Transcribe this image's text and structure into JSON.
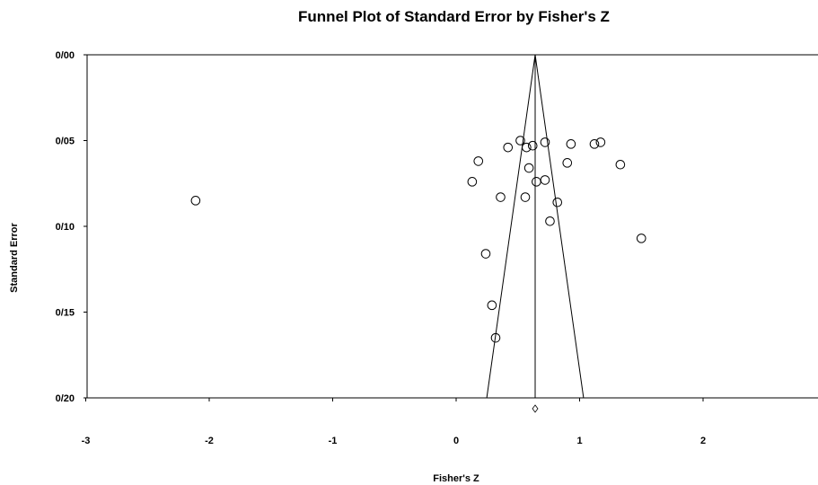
{
  "chart_data": {
    "type": "scatter",
    "title": "Funnel Plot of Standard Error by Fisher's Z",
    "xlabel": "Fisher's Z",
    "ylabel": "Standard Error",
    "xlim": [
      -3,
      3
    ],
    "ylim": [
      0,
      0.2
    ],
    "y_inverted": true,
    "x_ticks": [
      "-3",
      "-2",
      "-1",
      "0",
      "1",
      "2"
    ],
    "x_tick_values": [
      -3,
      -2,
      -1,
      0,
      1,
      2
    ],
    "y_ticks": [
      "0/00",
      "0/05",
      "0/10",
      "0/15",
      "0/20"
    ],
    "y_tick_values": [
      0,
      0.05,
      0.1,
      0.15,
      0.2
    ],
    "summary_effect": 0.64,
    "funnel_se_max": 0.2,
    "points": [
      {
        "x": -2.11,
        "y": 0.085
      },
      {
        "x": 0.13,
        "y": 0.074
      },
      {
        "x": 0.18,
        "y": 0.062
      },
      {
        "x": 0.24,
        "y": 0.116
      },
      {
        "x": 0.29,
        "y": 0.146
      },
      {
        "x": 0.32,
        "y": 0.165
      },
      {
        "x": 0.36,
        "y": 0.083
      },
      {
        "x": 0.42,
        "y": 0.054
      },
      {
        "x": 0.52,
        "y": 0.05
      },
      {
        "x": 0.56,
        "y": 0.083
      },
      {
        "x": 0.57,
        "y": 0.054
      },
      {
        "x": 0.59,
        "y": 0.066
      },
      {
        "x": 0.62,
        "y": 0.053
      },
      {
        "x": 0.65,
        "y": 0.074
      },
      {
        "x": 0.72,
        "y": 0.051
      },
      {
        "x": 0.72,
        "y": 0.073
      },
      {
        "x": 0.76,
        "y": 0.097
      },
      {
        "x": 0.82,
        "y": 0.086
      },
      {
        "x": 0.9,
        "y": 0.063
      },
      {
        "x": 0.93,
        "y": 0.052
      },
      {
        "x": 1.12,
        "y": 0.052
      },
      {
        "x": 1.17,
        "y": 0.051
      },
      {
        "x": 1.33,
        "y": 0.064
      },
      {
        "x": 1.5,
        "y": 0.107
      }
    ],
    "grid": false,
    "legend": "none"
  }
}
